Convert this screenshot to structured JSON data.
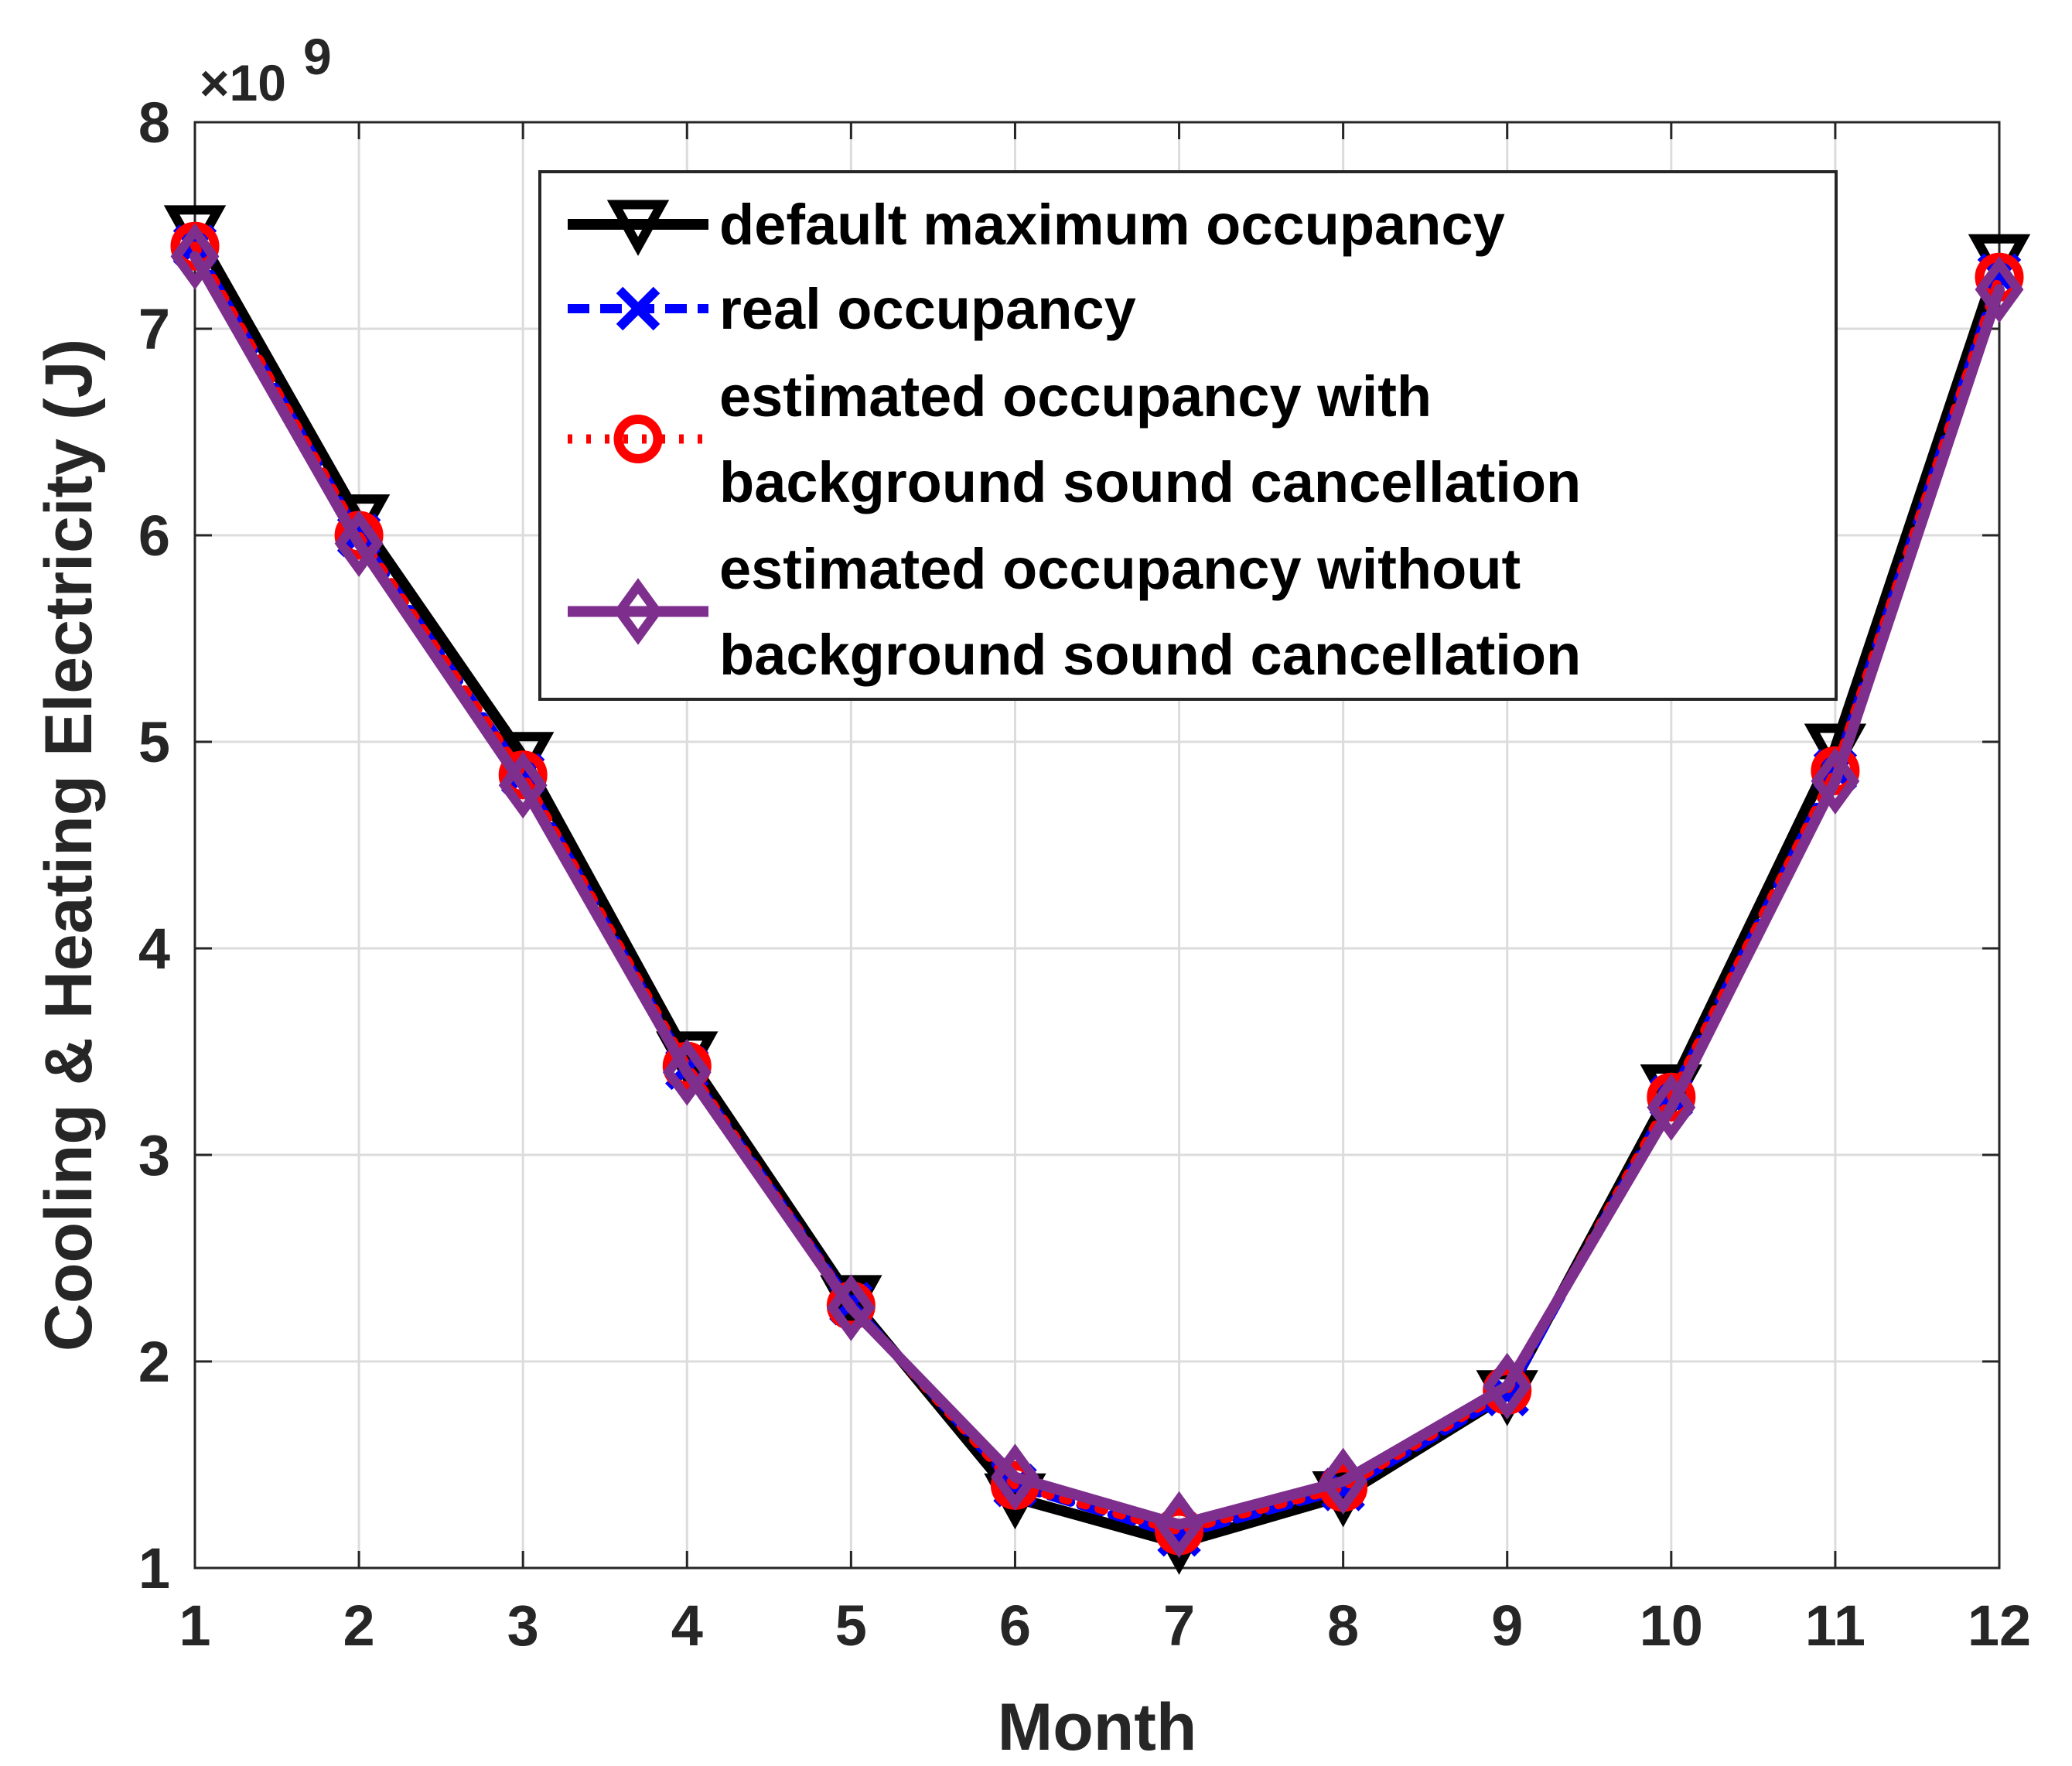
{
  "chart_data": {
    "type": "line",
    "title": "",
    "xlabel": "Month",
    "ylabel": "Cooling & Heating Electricity (J)",
    "y_multiplier_label": "×10",
    "y_multiplier_exponent": "9",
    "x": [
      1,
      2,
      3,
      4,
      5,
      6,
      7,
      8,
      9,
      10,
      11,
      12
    ],
    "xlim": [
      1,
      12
    ],
    "ylim": [
      1,
      8
    ],
    "x_ticks": [
      "1",
      "2",
      "3",
      "4",
      "5",
      "6",
      "7",
      "8",
      "9",
      "10",
      "11",
      "12"
    ],
    "y_ticks": [
      "1",
      "2",
      "3",
      "4",
      "5",
      "6",
      "7",
      "8"
    ],
    "grid": true,
    "legend_position": "top-right",
    "series": [
      {
        "name": "default maximum occupancy",
        "color": "#000000",
        "marker": "triangle-down",
        "line_style": "solid",
        "values": [
          7.48,
          6.08,
          4.93,
          3.48,
          2.3,
          1.34,
          1.12,
          1.35,
          1.84,
          3.32,
          4.97,
          7.34
        ]
      },
      {
        "name": "real occupancy",
        "color": "#0000ff",
        "marker": "x",
        "line_style": "dashed",
        "values": [
          7.4,
          6.0,
          4.84,
          3.42,
          2.28,
          1.4,
          1.16,
          1.38,
          1.84,
          3.28,
          4.86,
          7.26
        ]
      },
      {
        "name": "estimated occupancy with background sound cancellation",
        "color": "#ff0000",
        "marker": "circle",
        "line_style": "dotted",
        "values": [
          7.4,
          6.0,
          4.84,
          3.43,
          2.27,
          1.4,
          1.18,
          1.39,
          1.86,
          3.28,
          4.86,
          7.25
        ]
      },
      {
        "name": "estimated occupancy without background  sound cancellation",
        "color": "#7e2f8e",
        "marker": "diamond",
        "line_style": "solid",
        "values": [
          7.35,
          5.96,
          4.79,
          3.4,
          2.26,
          1.44,
          1.21,
          1.42,
          1.88,
          3.23,
          4.81,
          7.19
        ]
      }
    ],
    "legend_lines": [
      [
        "default maximum occupancy"
      ],
      [
        "real occupancy"
      ],
      [
        "estimated occupancy with",
        "background sound cancellation"
      ],
      [
        "estimated occupancy without",
        "background  sound cancellation"
      ]
    ]
  }
}
